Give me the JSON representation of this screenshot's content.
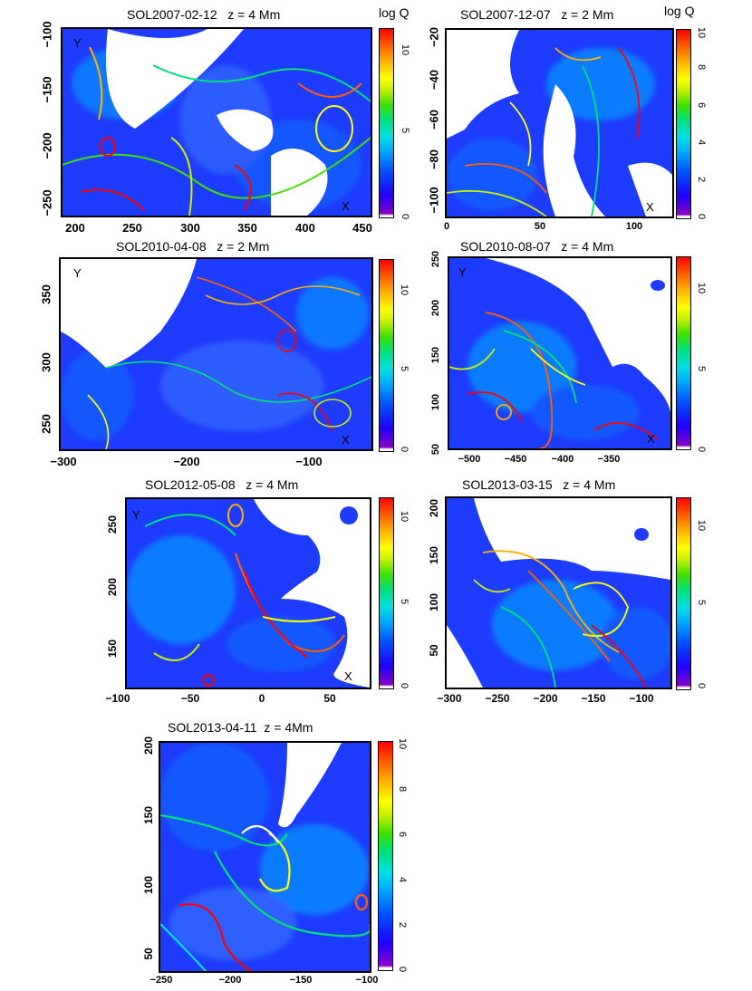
{
  "colorbar_label": "log Q",
  "chart_data": [
    {
      "type": "heatmap",
      "title": "SOL2007-02-12   z = 4 Mm",
      "xticks": [
        "200",
        "250",
        "300",
        "350",
        "400",
        "450"
      ],
      "yticks": [
        "−100",
        "−150",
        "−200",
        "−250"
      ],
      "xlim": [
        190,
        455
      ],
      "ylim": [
        -258,
        -92
      ],
      "colorbar_ticks": [
        "0",
        "5",
        "10"
      ],
      "colorbar_range": [
        0,
        12
      ],
      "colorbar_label": "log Q",
      "markers": [
        "Y",
        "X"
      ]
    },
    {
      "type": "heatmap",
      "title": "SOL2007-12-07   z = 2 Mm",
      "xticks": [
        "0",
        "50",
        "100"
      ],
      "yticks": [
        "−20",
        "−40",
        "−60",
        "−80",
        "−100"
      ],
      "xlim": [
        0,
        120
      ],
      "ylim": [
        -108,
        -20
      ],
      "colorbar_ticks": [
        "0",
        "2",
        "4",
        "6",
        "8",
        "10"
      ],
      "colorbar_range": [
        0,
        10
      ],
      "colorbar_label": "log Q",
      "markers": [
        "X"
      ]
    },
    {
      "type": "heatmap",
      "title": "SOL2010-04-08   z = 2 Mm",
      "xticks": [
        "−300",
        "−200",
        "−100"
      ],
      "yticks": [
        "350",
        "300",
        "250"
      ],
      "xlim": [
        -300,
        -45
      ],
      "ylim": [
        220,
        380
      ],
      "colorbar_ticks": [
        "0",
        "5",
        "10"
      ],
      "colorbar_range": [
        0,
        12
      ],
      "markers": [
        "Y",
        "X"
      ]
    },
    {
      "type": "heatmap",
      "title": "SOL2010-08-07   z = 4 Mm",
      "xticks": [
        "−500",
        "−450",
        "−400",
        "−350"
      ],
      "yticks": [
        "250",
        "200",
        "150",
        "100",
        "50"
      ],
      "xlim": [
        -535,
        -320
      ],
      "ylim": [
        50,
        250
      ],
      "colorbar_ticks": [
        "0",
        "5",
        "10"
      ],
      "colorbar_range": [
        0,
        12
      ],
      "markers": [
        "Y",
        "X"
      ]
    },
    {
      "type": "heatmap",
      "title": "SOL2012-05-08   z = 4 Mm",
      "xticks": [
        "−100",
        "−50",
        "0",
        "50"
      ],
      "yticks": [
        "250",
        "200",
        "150"
      ],
      "xlim": [
        -100,
        75
      ],
      "ylim": [
        115,
        270
      ],
      "colorbar_ticks": [
        "0",
        "5",
        "10"
      ],
      "colorbar_range": [
        0,
        12
      ],
      "markers": [
        "Y",
        "X"
      ]
    },
    {
      "type": "heatmap",
      "title": "SOL2013-03-15   z = 4 Mm",
      "xticks": [
        "−300",
        "−250",
        "−200",
        "−150",
        "−100"
      ],
      "yticks": [
        "200",
        "150",
        "100",
        "50"
      ],
      "xlim": [
        -300,
        -65
      ],
      "ylim": [
        10,
        205
      ],
      "colorbar_ticks": [
        "0",
        "5",
        "10"
      ],
      "colorbar_range": [
        0,
        12
      ]
    },
    {
      "type": "heatmap",
      "title": "SOL2013-04-11  z = 4Mm",
      "xticks": [
        "−250",
        "−200",
        "−150",
        "−100"
      ],
      "yticks": [
        "200",
        "150",
        "100",
        "50"
      ],
      "xlim": [
        -250,
        -100
      ],
      "ylim": [
        35,
        205
      ],
      "colorbar_ticks": [
        "0",
        "2",
        "4",
        "6",
        "8",
        "10"
      ],
      "colorbar_range": [
        0,
        10
      ]
    }
  ]
}
